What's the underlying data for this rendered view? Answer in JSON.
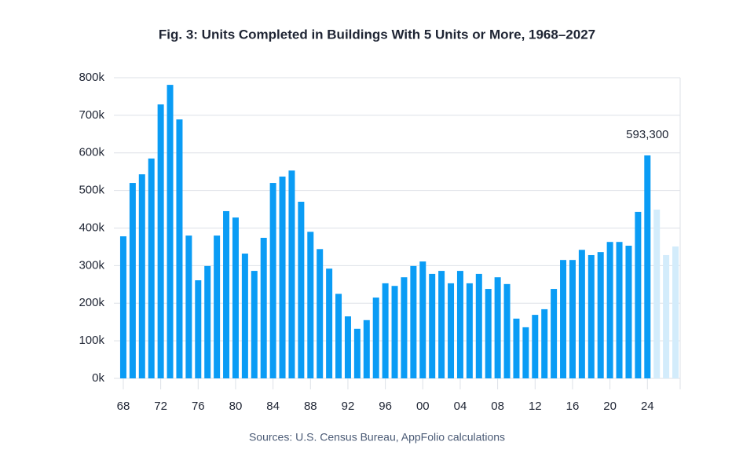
{
  "chart_data": {
    "type": "bar",
    "title": "Fig. 3: Units Completed in Buildings With 5 Units or More, 1968–2027",
    "source": "Sources: U.S. Census Bureau, AppFolio calculations",
    "categories": [
      "68",
      null,
      null,
      null,
      "72",
      null,
      null,
      null,
      "76",
      null,
      null,
      null,
      "80",
      null,
      null,
      null,
      "84",
      null,
      null,
      null,
      "88",
      null,
      null,
      null,
      "92",
      null,
      null,
      null,
      "96",
      null,
      null,
      null,
      "00",
      null,
      null,
      null,
      "04",
      null,
      null,
      null,
      "08",
      null,
      null,
      null,
      "12",
      null,
      null,
      null,
      "16",
      null,
      null,
      null,
      "20",
      null,
      null,
      null,
      "24",
      null,
      null,
      null
    ],
    "values": [
      378000,
      520000,
      543000,
      585000,
      729000,
      781000,
      689000,
      380000,
      261000,
      299000,
      380000,
      445000,
      428000,
      332000,
      286000,
      374000,
      520000,
      537000,
      553000,
      470000,
      390000,
      344000,
      292000,
      225000,
      165000,
      132000,
      155000,
      215000,
      253000,
      246000,
      269000,
      299000,
      311000,
      278000,
      286000,
      253000,
      286000,
      253000,
      278000,
      238000,
      269000,
      251000,
      159000,
      136000,
      169000,
      184000,
      238000,
      315000,
      315000,
      342000,
      328000,
      336000,
      363000,
      363000,
      353000,
      443000,
      593300,
      449000,
      328000,
      351000
    ],
    "value_labels": [
      null,
      null,
      null,
      null,
      null,
      null,
      null,
      null,
      null,
      null,
      null,
      null,
      null,
      null,
      null,
      null,
      null,
      null,
      null,
      null,
      null,
      null,
      null,
      null,
      null,
      null,
      null,
      null,
      null,
      null,
      null,
      null,
      null,
      null,
      null,
      null,
      null,
      null,
      null,
      null,
      null,
      null,
      null,
      null,
      null,
      null,
      null,
      null,
      null,
      null,
      null,
      null,
      null,
      null,
      null,
      null,
      "593,300",
      null,
      null,
      null
    ],
    "colors": [
      "#0a9cf5",
      "#0a9cf5",
      "#0a9cf5",
      "#0a9cf5",
      "#0a9cf5",
      "#0a9cf5",
      "#0a9cf5",
      "#0a9cf5",
      "#0a9cf5",
      "#0a9cf5",
      "#0a9cf5",
      "#0a9cf5",
      "#0a9cf5",
      "#0a9cf5",
      "#0a9cf5",
      "#0a9cf5",
      "#0a9cf5",
      "#0a9cf5",
      "#0a9cf5",
      "#0a9cf5",
      "#0a9cf5",
      "#0a9cf5",
      "#0a9cf5",
      "#0a9cf5",
      "#0a9cf5",
      "#0a9cf5",
      "#0a9cf5",
      "#0a9cf5",
      "#0a9cf5",
      "#0a9cf5",
      "#0a9cf5",
      "#0a9cf5",
      "#0a9cf5",
      "#0a9cf5",
      "#0a9cf5",
      "#0a9cf5",
      "#0a9cf5",
      "#0a9cf5",
      "#0a9cf5",
      "#0a9cf5",
      "#0a9cf5",
      "#0a9cf5",
      "#0a9cf5",
      "#0a9cf5",
      "#0a9cf5",
      "#0a9cf5",
      "#0a9cf5",
      "#0a9cf5",
      "#0a9cf5",
      "#0a9cf5",
      "#0a9cf5",
      "#0a9cf5",
      "#0a9cf5",
      "#0a9cf5",
      "#0a9cf5",
      "#0a9cf5",
      "#0a9cf5",
      "#d3ecfb",
      "#d3ecfb",
      "#d3ecfb"
    ],
    "ylim": [
      0,
      800000
    ],
    "yticks": [
      {
        "value": 0,
        "label": "0k"
      },
      {
        "value": 100000,
        "label": "100k"
      },
      {
        "value": 200000,
        "label": "200k"
      },
      {
        "value": 300000,
        "label": "300k"
      },
      {
        "value": 400000,
        "label": "400k"
      },
      {
        "value": 500000,
        "label": "500k"
      },
      {
        "value": 600000,
        "label": "600k"
      },
      {
        "value": 700000,
        "label": "700k"
      },
      {
        "value": 800000,
        "label": "800k"
      }
    ],
    "grid": true
  }
}
